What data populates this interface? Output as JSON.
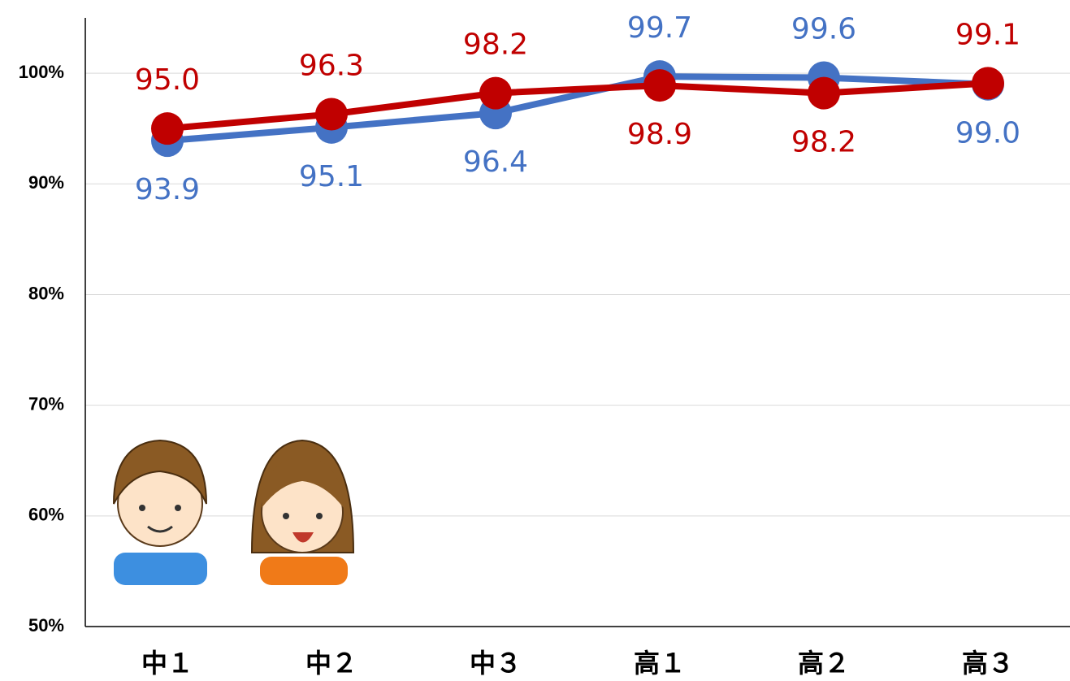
{
  "chart_data": {
    "type": "line",
    "categories": [
      "中１",
      "中２",
      "中３",
      "高１",
      "高２",
      "高３"
    ],
    "series": [
      {
        "color": "#4472c4",
        "values": [
          93.9,
          95.1,
          96.4,
          99.7,
          99.6,
          99.0
        ],
        "value_labels": [
          "93.9",
          "95.1",
          "96.4",
          "99.7",
          "99.6",
          "99.0"
        ]
      },
      {
        "color": "#c00000",
        "values": [
          95.0,
          96.3,
          98.2,
          98.9,
          98.2,
          99.1
        ],
        "value_labels": [
          "95.0",
          "96.3",
          "98.2",
          "98.9",
          "98.2",
          "99.1"
        ]
      }
    ],
    "ylim": [
      50,
      105
    ],
    "yticks": [
      {
        "value": 50,
        "label": "50%"
      },
      {
        "value": 60,
        "label": "60%"
      },
      {
        "value": 70,
        "label": "70%"
      },
      {
        "value": 80,
        "label": "80%"
      },
      {
        "value": 90,
        "label": "90%"
      },
      {
        "value": 100,
        "label": "100%"
      }
    ],
    "grid": true
  }
}
